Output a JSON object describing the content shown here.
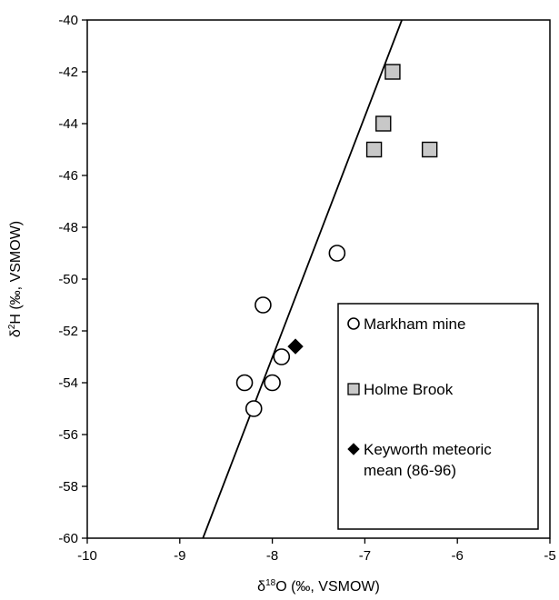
{
  "chart_data": {
    "type": "scatter",
    "xlabel": "δ18O (‰, VSMOW)",
    "xlabel_parts": {
      "base": "δ",
      "sup": "18",
      "rest": "O (‰, VSMOW)"
    },
    "ylabel": "δ2H (‰, VSMOW)",
    "ylabel_parts": {
      "base": "δ",
      "sup": "2",
      "rest": "H (‰, VSMOW)"
    },
    "xlim": [
      -10,
      -5
    ],
    "ylim": [
      -60,
      -40
    ],
    "xticks": [
      -10,
      -9,
      -8,
      -7,
      -6,
      -5
    ],
    "yticks": [
      -60,
      -58,
      -56,
      -54,
      -52,
      -50,
      -48,
      -46,
      -44,
      -42,
      -40
    ],
    "grid": false,
    "legend_position": "bottom-right",
    "series": [
      {
        "name": "Markham mine",
        "marker": "circle",
        "fill": "#ffffff",
        "stroke": "#000000",
        "points": [
          {
            "x": -7.3,
            "y": -49
          },
          {
            "x": -8.1,
            "y": -51
          },
          {
            "x": -7.9,
            "y": -53
          },
          {
            "x": -8.3,
            "y": -54
          },
          {
            "x": -8.0,
            "y": -54
          },
          {
            "x": -8.2,
            "y": -55
          }
        ]
      },
      {
        "name": "Holme Brook",
        "marker": "square",
        "fill": "#c8c8c8",
        "stroke": "#000000",
        "points": [
          {
            "x": -6.7,
            "y": -42
          },
          {
            "x": -6.8,
            "y": -44
          },
          {
            "x": -6.9,
            "y": -45
          },
          {
            "x": -6.3,
            "y": -45
          }
        ]
      },
      {
        "name": "Keyworth meteoric mean (86-96)",
        "name_lines": [
          "Keyworth meteoric",
          "mean (86-96)"
        ],
        "marker": "diamond",
        "fill": "#000000",
        "stroke": "#000000",
        "points": [
          {
            "x": -7.75,
            "y": -52.6
          }
        ]
      }
    ],
    "reference_line": {
      "points": [
        {
          "x": -8.75,
          "y": -60
        },
        {
          "x": -6.6,
          "y": -40
        }
      ],
      "color": "#000000"
    }
  }
}
